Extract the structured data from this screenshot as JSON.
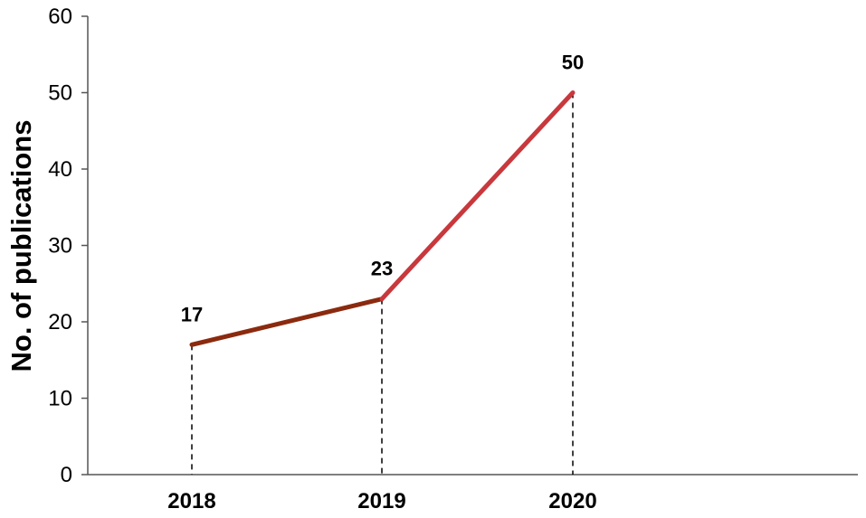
{
  "chart_data": {
    "type": "line",
    "title": "",
    "xlabel": "",
    "ylabel": "No. of  publications",
    "categories": [
      "2018",
      "2019",
      "2020"
    ],
    "values": [
      17,
      23,
      50
    ],
    "data_labels": [
      "17",
      "23",
      "50"
    ],
    "ylim": [
      0,
      60
    ],
    "yticks": [
      0,
      10,
      20,
      30,
      40,
      50,
      60
    ],
    "grid": false,
    "legend": "none",
    "colors": {
      "segment_1": "#8b2a0e",
      "segment_2": "#c8383c",
      "guide": "#000000",
      "axis": "#555555"
    }
  }
}
